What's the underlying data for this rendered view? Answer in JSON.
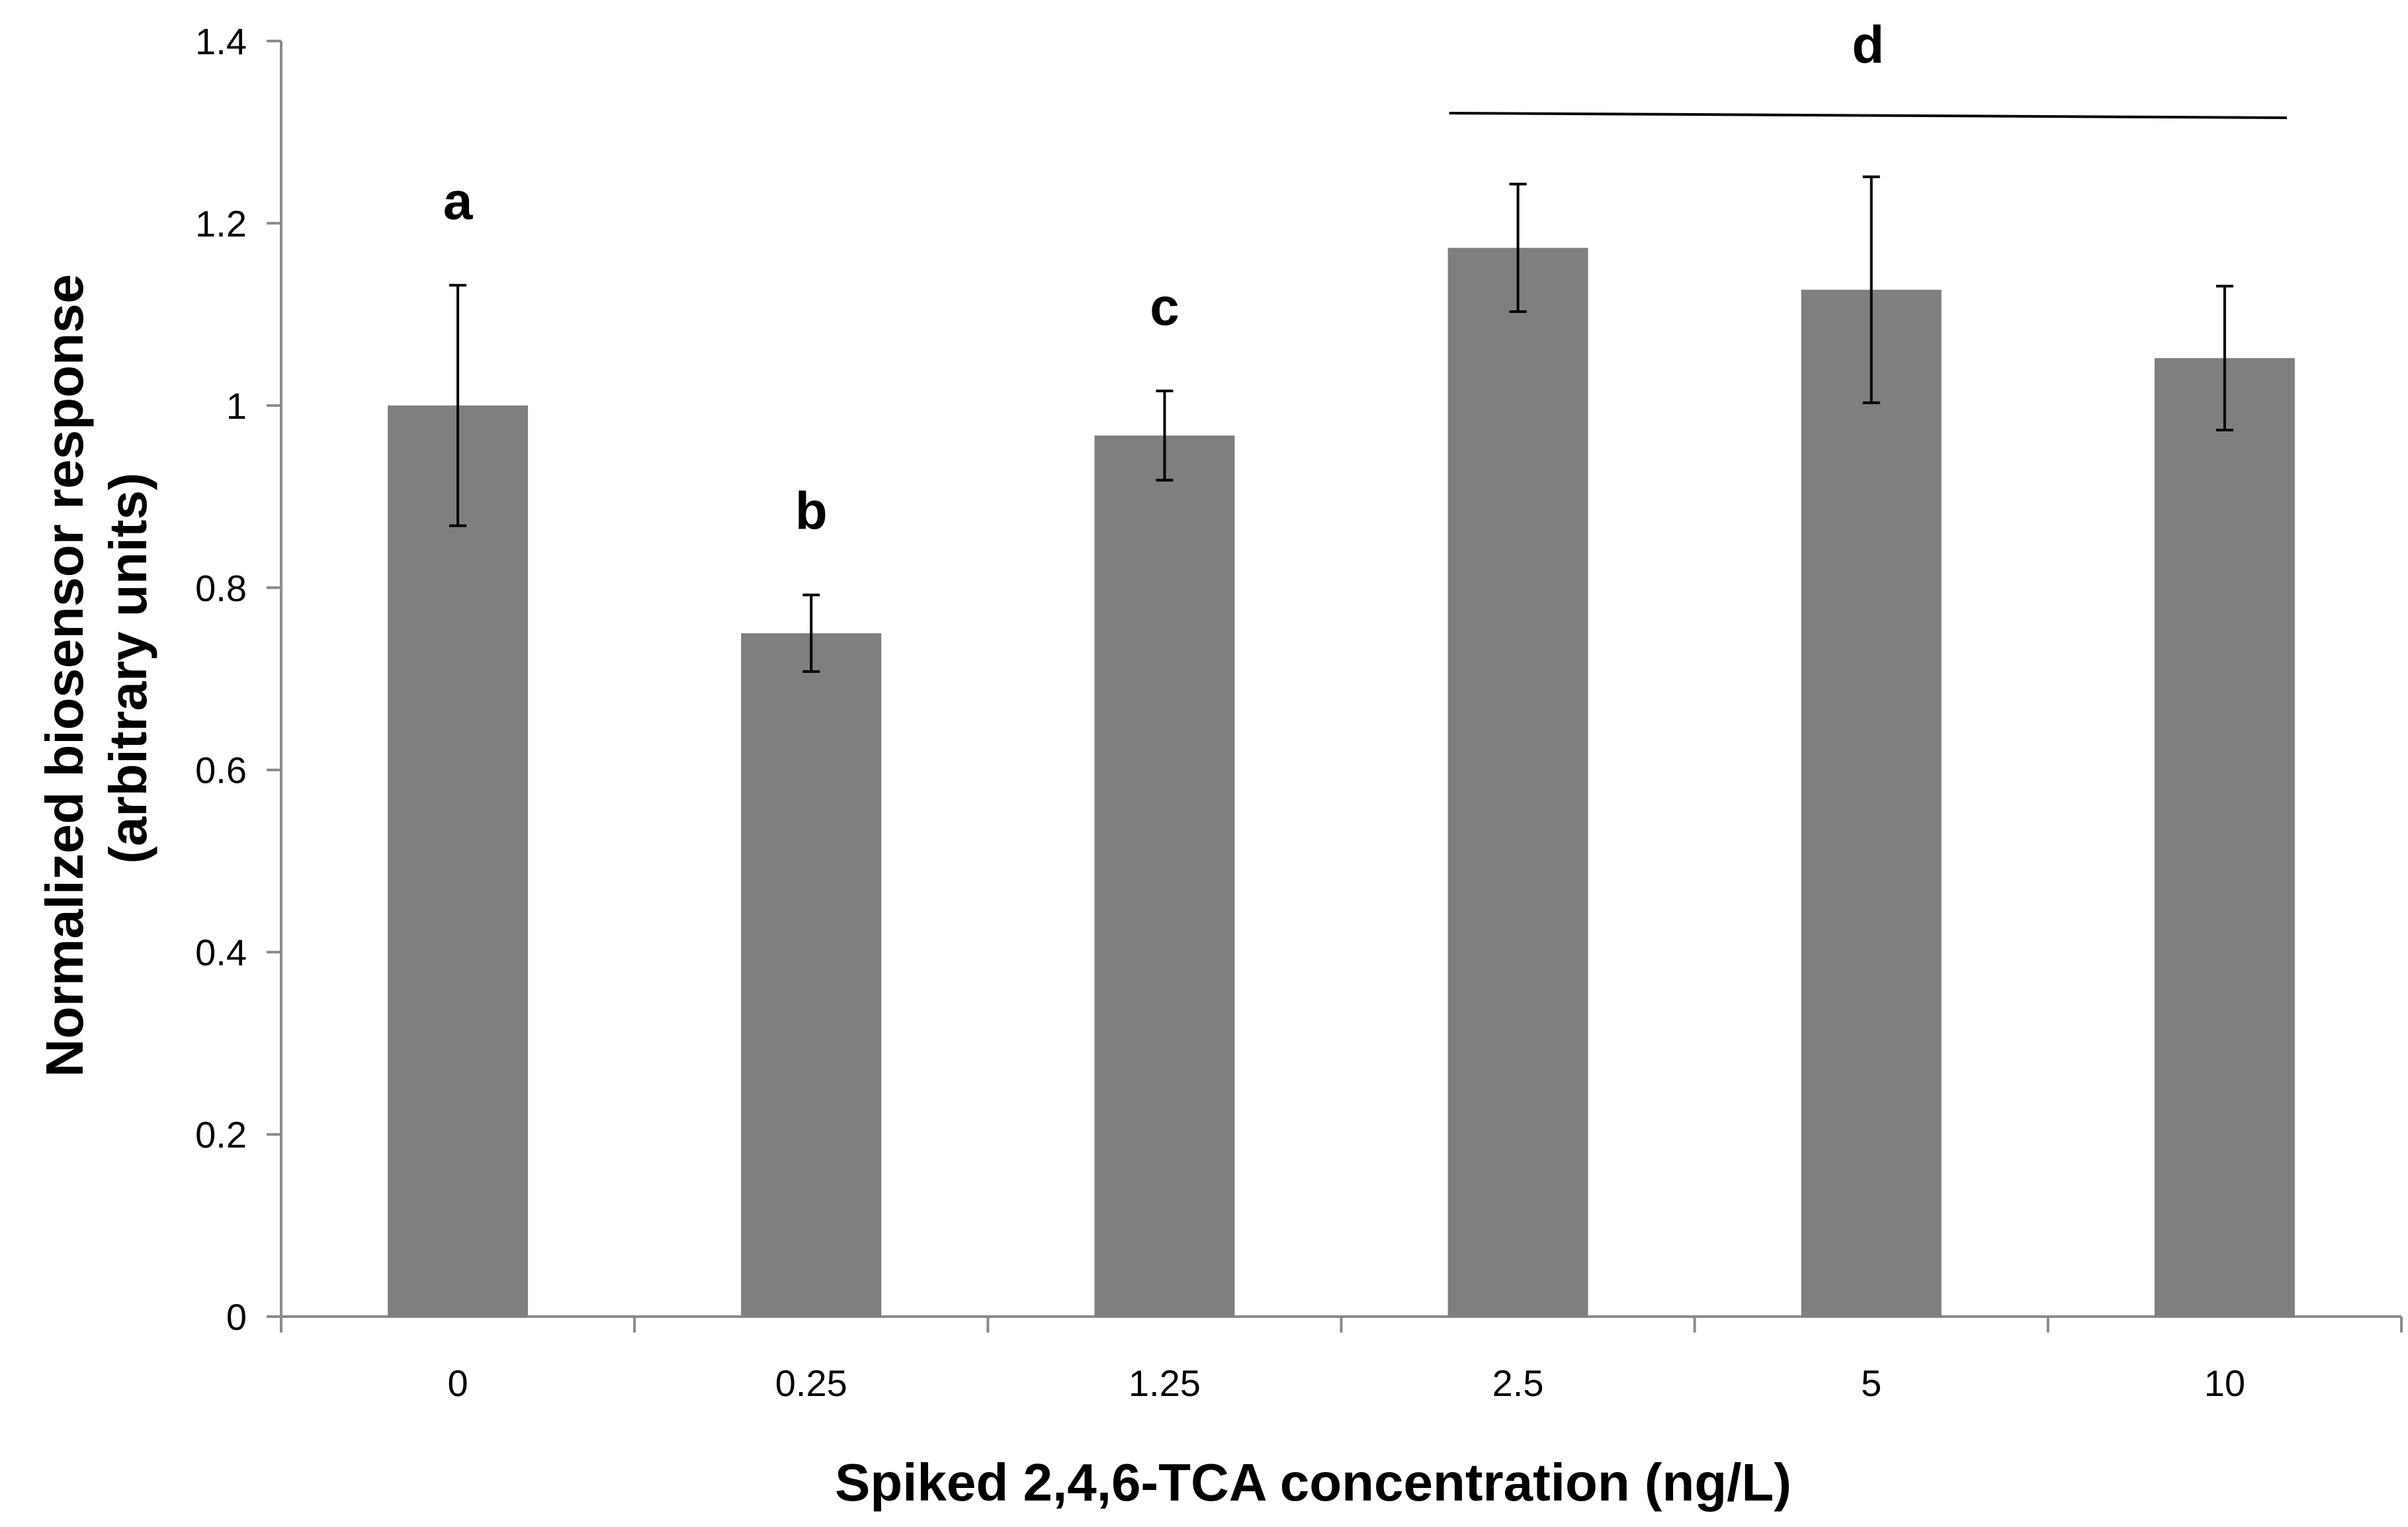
{
  "chart_data": {
    "type": "bar",
    "title": "",
    "xlabel": "Spiked 2,4,6-TCA concentration (ng/L)",
    "ylabel_lines": [
      "Normalized biosensor response",
      "(arbitrary units)"
    ],
    "categories": [
      "0",
      "0.25",
      "1.25",
      "2.5",
      "5",
      "10"
    ],
    "values": [
      1.0,
      0.75,
      0.967,
      1.173,
      1.127,
      1.052
    ],
    "errors": [
      0.132,
      0.042,
      0.049,
      0.07,
      0.124,
      0.079
    ],
    "ylim": [
      0,
      1.4
    ],
    "yticks": [
      0,
      0.2,
      0.4,
      0.6,
      0.8,
      1,
      1.2,
      1.4
    ],
    "ytick_labels": [
      "0",
      "0.2",
      "0.4",
      "0.6",
      "0.8",
      "1",
      "1.2",
      "1.4"
    ],
    "grid": false,
    "bar_color": "#7f7f7f",
    "significance_labels": [
      {
        "text": "a",
        "category_index": 0
      },
      {
        "text": "b",
        "category_index": 1
      },
      {
        "text": "c",
        "category_index": 2
      }
    ],
    "significance_group": {
      "text": "d",
      "from_index": 3,
      "to_index": 5
    }
  }
}
